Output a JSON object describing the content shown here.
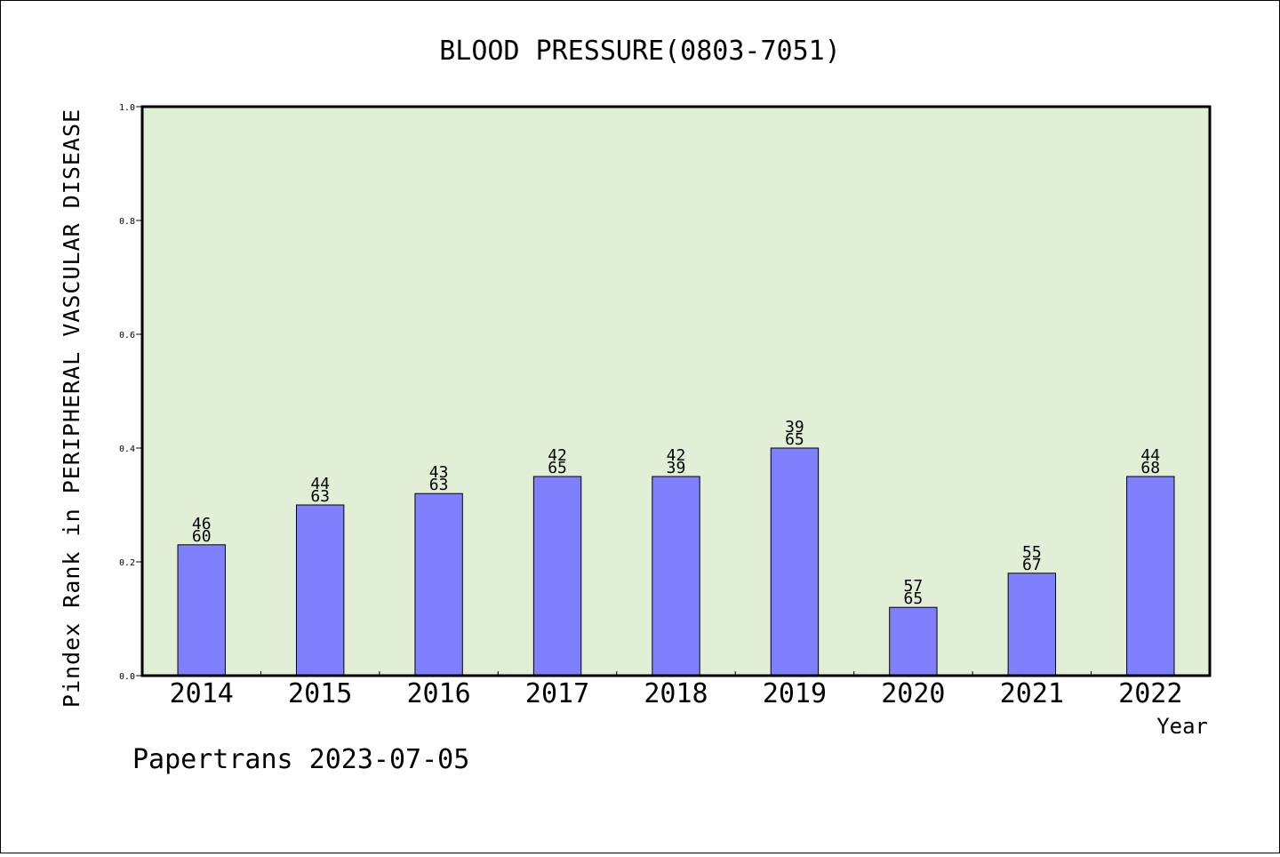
{
  "chart_data": {
    "type": "bar",
    "title": "BLOOD PRESSURE(0803-7051)",
    "xlabel": "Year",
    "ylabel": "Pindex Rank in PERIPHERAL VASCULAR DISEASE",
    "categories": [
      "2014",
      "2015",
      "2016",
      "2017",
      "2018",
      "2019",
      "2020",
      "2021",
      "2022"
    ],
    "values": [
      0.23,
      0.3,
      0.32,
      0.35,
      0.35,
      0.4,
      0.12,
      0.18,
      0.35
    ],
    "bar_labels": [
      [
        "46",
        "60"
      ],
      [
        "44",
        "63"
      ],
      [
        "43",
        "63"
      ],
      [
        "42",
        "65"
      ],
      [
        "42",
        "39"
      ],
      [
        "39",
        "65"
      ],
      [
        "57",
        "65"
      ],
      [
        "55",
        "67"
      ],
      [
        "44",
        "68"
      ]
    ],
    "ylim": [
      0.0,
      1.0
    ],
    "yticks": [
      "0.0",
      "0.2",
      "0.4",
      "0.6",
      "0.8",
      "1.0"
    ],
    "legend": "none",
    "grid": false,
    "colors": {
      "bar": "#8080ff",
      "plot_background": "#e2efd7",
      "axis": "#000000"
    }
  },
  "footer": "Papertrans 2023-07-05"
}
